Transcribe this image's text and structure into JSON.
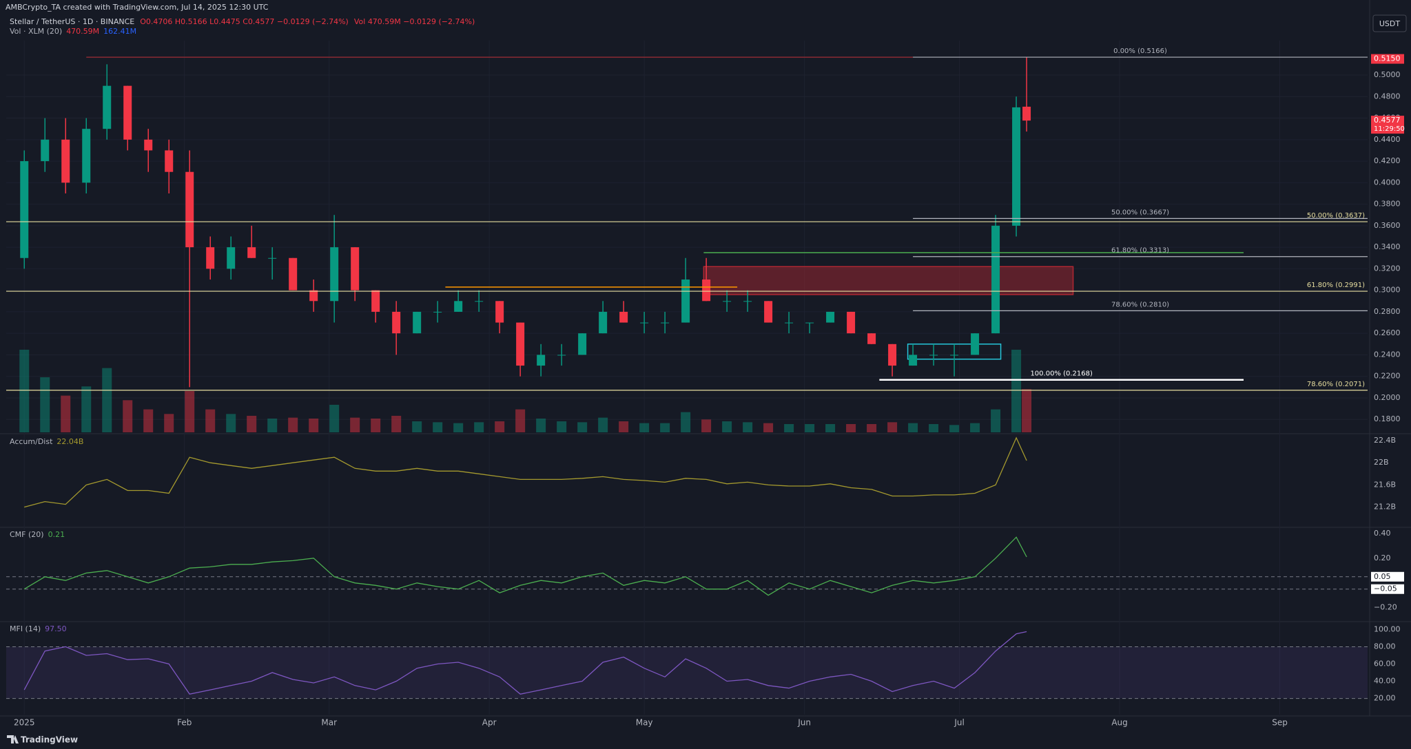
{
  "header": {
    "credit": "AMBCrypto_TA created with TradingView.com, Jul 14, 2025 12:30 UTC",
    "ohlc": "O0.4706 H0.5166 L0.4475 C0.4577 −0.0129 (−2.74%)",
    "vol": "Vol 470.59M −0.0129 (−2.74%)"
  },
  "currency": "USDT",
  "footer": "TradingView",
  "chart_data": [
    {
      "type": "candlestick",
      "title": "Stellar / TetherUS · 1D · BINANCE",
      "up_color": "#089981",
      "down_color": "#f23645",
      "x": [
        0,
        4,
        8,
        12,
        16,
        20,
        24,
        28,
        32,
        36,
        40,
        44,
        48,
        52,
        56,
        60,
        64,
        68,
        72,
        76,
        80,
        84,
        88,
        92,
        96,
        100,
        104,
        108,
        112,
        116,
        120,
        124,
        128,
        132,
        136,
        140,
        144,
        148,
        152,
        156,
        160,
        164,
        168,
        172,
        176,
        180,
        184,
        188,
        192,
        194
      ],
      "open": [
        0.33,
        0.42,
        0.44,
        0.4,
        0.45,
        0.49,
        0.44,
        0.43,
        0.41,
        0.34,
        0.32,
        0.34,
        0.33,
        0.33,
        0.3,
        0.29,
        0.34,
        0.3,
        0.28,
        0.26,
        0.28,
        0.28,
        0.29,
        0.29,
        0.27,
        0.23,
        0.24,
        0.24,
        0.26,
        0.28,
        0.27,
        0.27,
        0.27,
        0.31,
        0.29,
        0.29,
        0.29,
        0.27,
        0.27,
        0.27,
        0.28,
        0.26,
        0.25,
        0.23,
        0.24,
        0.24,
        0.24,
        0.26,
        0.36,
        0.4706
      ],
      "high": [
        0.43,
        0.46,
        0.46,
        0.46,
        0.51,
        0.49,
        0.45,
        0.44,
        0.43,
        0.35,
        0.35,
        0.36,
        0.34,
        0.33,
        0.31,
        0.37,
        0.34,
        0.3,
        0.29,
        0.28,
        0.29,
        0.3,
        0.3,
        0.29,
        0.27,
        0.25,
        0.25,
        0.26,
        0.29,
        0.29,
        0.28,
        0.28,
        0.33,
        0.33,
        0.3,
        0.3,
        0.29,
        0.28,
        0.27,
        0.28,
        0.28,
        0.26,
        0.25,
        0.25,
        0.25,
        0.25,
        0.26,
        0.37,
        0.48,
        0.5166
      ],
      "low": [
        0.32,
        0.41,
        0.39,
        0.39,
        0.44,
        0.43,
        0.41,
        0.39,
        0.21,
        0.31,
        0.31,
        0.33,
        0.31,
        0.3,
        0.28,
        0.27,
        0.29,
        0.27,
        0.24,
        0.26,
        0.27,
        0.28,
        0.28,
        0.26,
        0.22,
        0.22,
        0.23,
        0.24,
        0.26,
        0.27,
        0.26,
        0.26,
        0.27,
        0.29,
        0.28,
        0.28,
        0.27,
        0.26,
        0.26,
        0.27,
        0.26,
        0.25,
        0.22,
        0.23,
        0.23,
        0.22,
        0.24,
        0.26,
        0.35,
        0.4475
      ],
      "close": [
        0.42,
        0.44,
        0.4,
        0.45,
        0.49,
        0.44,
        0.43,
        0.41,
        0.34,
        0.32,
        0.34,
        0.33,
        0.33,
        0.3,
        0.29,
        0.34,
        0.3,
        0.28,
        0.26,
        0.28,
        0.28,
        0.29,
        0.29,
        0.27,
        0.23,
        0.24,
        0.24,
        0.26,
        0.28,
        0.27,
        0.27,
        0.27,
        0.31,
        0.29,
        0.29,
        0.29,
        0.27,
        0.27,
        0.27,
        0.28,
        0.26,
        0.25,
        0.23,
        0.24,
        0.24,
        0.24,
        0.26,
        0.36,
        0.47,
        0.4577
      ],
      "volume": {
        "name": "Vol · XLM (20)",
        "legend_values": [
          "470.59M",
          "162.41M"
        ],
        "values": [
          900,
          600,
          400,
          500,
          700,
          350,
          250,
          200,
          450,
          250,
          200,
          180,
          150,
          160,
          150,
          300,
          160,
          150,
          180,
          120,
          110,
          100,
          110,
          120,
          250,
          150,
          120,
          110,
          160,
          120,
          100,
          100,
          220,
          140,
          120,
          110,
          100,
          90,
          90,
          90,
          90,
          90,
          110,
          100,
          90,
          80,
          100,
          250,
          900,
          470.59
        ]
      },
      "xlim": [
        -3.5,
        260
      ],
      "xticks": [
        {
          "value": 0,
          "label": "2025"
        },
        {
          "value": 31,
          "label": "Feb"
        },
        {
          "value": 59,
          "label": "Mar"
        },
        {
          "value": 90,
          "label": "Apr"
        },
        {
          "value": 120,
          "label": "May"
        },
        {
          "value": 151,
          "label": "Jun"
        },
        {
          "value": 181,
          "label": "Jul"
        },
        {
          "value": 212,
          "label": "Aug"
        },
        {
          "value": 243,
          "label": "Sep"
        }
      ],
      "ylim": [
        0.168,
        0.532
      ],
      "yticks": [
        {
          "value": 0.5,
          "label": "0.5000"
        },
        {
          "value": 0.48,
          "label": "0.4800"
        },
        {
          "value": 0.46,
          "label": "0.4600"
        },
        {
          "value": 0.44,
          "label": "0.4400"
        },
        {
          "value": 0.42,
          "label": "0.4200"
        },
        {
          "value": 0.4,
          "label": "0.4000"
        },
        {
          "value": 0.38,
          "label": "0.3800"
        },
        {
          "value": 0.36,
          "label": "0.3600"
        },
        {
          "value": 0.34,
          "label": "0.3400"
        },
        {
          "value": 0.32,
          "label": "0.3200"
        },
        {
          "value": 0.3,
          "label": "0.3000"
        },
        {
          "value": 0.28,
          "label": "0.2800"
        },
        {
          "value": 0.26,
          "label": "0.2600"
        },
        {
          "value": 0.24,
          "label": "0.2400"
        },
        {
          "value": 0.22,
          "label": "0.2200"
        },
        {
          "value": 0.2,
          "label": "0.2000"
        },
        {
          "value": 0.18,
          "label": "0.1800"
        }
      ],
      "grid": true,
      "zones": [
        {
          "y0": 0.296,
          "y1": 0.322,
          "x0": 131.5,
          "x1": 203,
          "fill": "rgba(178,40,51,0.45)",
          "stroke": "#b22833"
        },
        {
          "y0": 0.236,
          "y1": 0.25,
          "x0": 171,
          "x1": 189,
          "fill": "none",
          "stroke": "#26c6da"
        }
      ],
      "segments": [
        {
          "value": 0.303,
          "x0": 81.5,
          "x1": 138,
          "color": "#ff9800"
        },
        {
          "value": 0.335,
          "x0": 131.5,
          "x1": 236,
          "color": "#4caf50"
        },
        {
          "value": 0.5166,
          "x0": 12,
          "x1": 172,
          "color": "#8a2a33"
        }
      ],
      "levels": [
        {
          "label": "0.00% (0.5166)",
          "value": 0.5166,
          "x0": 172,
          "x1": 260,
          "color": "#b2b5be",
          "anchor": "middle"
        },
        {
          "label": "50.00% (0.3667)",
          "value": 0.3667,
          "x0": 172,
          "x1": 260,
          "color": "#b2b5be",
          "anchor": "middle"
        },
        {
          "label": "61.80% (0.3313)",
          "value": 0.3313,
          "x0": 172,
          "x1": 260,
          "color": "#b2b5be",
          "anchor": "middle"
        },
        {
          "label": "78.60% (0.2810)",
          "value": 0.281,
          "x0": 172,
          "x1": 260,
          "color": "#b2b5be",
          "anchor": "middle"
        },
        {
          "label": "100.00% (0.2168)",
          "value": 0.2168,
          "x0": 165.5,
          "x1": 236,
          "color": "#ffffff",
          "anchor": "middle"
        },
        {
          "label": "50.00% (0.3637)",
          "value": 0.3637,
          "x0": -3.5,
          "x1": 260,
          "color": "#e8dfa0",
          "anchor": "end"
        },
        {
          "label": "61.80% (0.2991)",
          "value": 0.2991,
          "x0": -3.5,
          "x1": 260,
          "color": "#e8dfa0",
          "anchor": "end"
        },
        {
          "label": "78.60% (0.2071)",
          "value": 0.2071,
          "x0": -3.5,
          "x1": 260,
          "color": "#e8dfa0",
          "anchor": "end"
        }
      ],
      "badges": [
        {
          "label": "0.5150",
          "value": 0.515,
          "color": "#f23645"
        },
        {
          "label": "0.4577",
          "sub": "11:29:50",
          "value": 0.4577,
          "color": "#f23645"
        }
      ]
    },
    {
      "type": "line",
      "title": "Accum/Dist",
      "legend_value": "22.04B",
      "color": "#a59a2e",
      "x": [
        0,
        4,
        8,
        12,
        16,
        20,
        24,
        28,
        32,
        36,
        40,
        44,
        48,
        52,
        56,
        60,
        64,
        68,
        72,
        76,
        80,
        84,
        88,
        92,
        96,
        100,
        104,
        108,
        112,
        116,
        120,
        124,
        128,
        132,
        136,
        140,
        144,
        148,
        152,
        156,
        160,
        164,
        168,
        172,
        176,
        180,
        184,
        188,
        192,
        194
      ],
      "values": [
        21.2,
        21.3,
        21.25,
        21.6,
        21.7,
        21.5,
        21.5,
        21.45,
        22.1,
        22.0,
        21.95,
        21.9,
        21.95,
        22.0,
        22.05,
        22.1,
        21.9,
        21.85,
        21.85,
        21.9,
        21.85,
        21.85,
        21.8,
        21.75,
        21.7,
        21.7,
        21.7,
        21.72,
        21.75,
        21.7,
        21.68,
        21.65,
        21.72,
        21.7,
        21.62,
        21.65,
        21.6,
        21.58,
        21.58,
        21.62,
        21.55,
        21.52,
        21.4,
        21.4,
        21.42,
        21.42,
        21.45,
        21.6,
        22.45,
        22.04
      ],
      "ylim": [
        20.86,
        22.5
      ],
      "yticks": [
        {
          "value": 22.4,
          "label": "22.4B"
        },
        {
          "value": 22,
          "label": "22B"
        },
        {
          "value": 21.6,
          "label": "21.6B"
        },
        {
          "value": 21.2,
          "label": "21.2B"
        }
      ]
    },
    {
      "type": "line",
      "title": "CMF (20)",
      "legend_value": "0.21",
      "color": "#4caf50",
      "x": [
        0,
        4,
        8,
        12,
        16,
        20,
        24,
        28,
        32,
        36,
        40,
        44,
        48,
        52,
        56,
        60,
        64,
        68,
        72,
        76,
        80,
        84,
        88,
        92,
        96,
        100,
        104,
        108,
        112,
        116,
        120,
        124,
        128,
        132,
        136,
        140,
        144,
        148,
        152,
        156,
        160,
        164,
        168,
        172,
        176,
        180,
        184,
        188,
        192,
        194
      ],
      "values": [
        -0.05,
        0.05,
        0.02,
        0.08,
        0.1,
        0.05,
        0,
        0.05,
        0.12,
        0.13,
        0.15,
        0.15,
        0.17,
        0.18,
        0.2,
        0.05,
        0,
        -0.02,
        -0.05,
        0,
        -0.03,
        -0.05,
        0.02,
        -0.08,
        -0.02,
        0.02,
        0,
        0.05,
        0.08,
        -0.02,
        0.02,
        0,
        0.05,
        -0.05,
        -0.05,
        0.02,
        -0.1,
        0,
        -0.05,
        0.02,
        -0.03,
        -0.08,
        -0.02,
        0.02,
        0,
        0.02,
        0.05,
        0.2,
        0.37,
        0.21
      ],
      "ylim": [
        -0.302,
        0.444
      ],
      "yticks": [
        {
          "value": 0.4,
          "label": "0.40"
        },
        {
          "value": 0.2,
          "label": "0.20"
        },
        {
          "value": -0.2,
          "label": "−0.20"
        }
      ],
      "bands": [
        {
          "value": 0.05,
          "label": "0.05"
        },
        {
          "value": -0.05,
          "label": "−0.05"
        }
      ]
    },
    {
      "type": "line",
      "title": "MFI (14)",
      "legend_value": "97.50",
      "color": "#7e57c2",
      "x": [
        0,
        4,
        8,
        12,
        16,
        20,
        24,
        28,
        32,
        36,
        40,
        44,
        48,
        52,
        56,
        60,
        64,
        68,
        72,
        76,
        80,
        84,
        88,
        92,
        96,
        100,
        104,
        108,
        112,
        116,
        120,
        124,
        128,
        132,
        136,
        140,
        144,
        148,
        152,
        156,
        160,
        164,
        168,
        172,
        176,
        180,
        184,
        188,
        192,
        194
      ],
      "values": [
        30,
        75,
        80,
        70,
        72,
        65,
        66,
        60,
        25,
        30,
        35,
        40,
        50,
        42,
        38,
        45,
        35,
        30,
        40,
        55,
        60,
        62,
        55,
        45,
        25,
        30,
        35,
        40,
        62,
        68,
        55,
        45,
        66,
        55,
        40,
        42,
        35,
        32,
        40,
        45,
        48,
        40,
        28,
        35,
        40,
        32,
        50,
        75,
        95,
        97.5
      ],
      "ylim": [
        1.3,
        108.3
      ],
      "yticks": [
        {
          "value": 100,
          "label": "100.00"
        },
        {
          "value": 80,
          "label": "80.00"
        },
        {
          "value": 60,
          "label": "60.00"
        },
        {
          "value": 40,
          "label": "40.00"
        },
        {
          "value": 20,
          "label": "20.00"
        }
      ],
      "band": [
        20,
        80
      ]
    }
  ]
}
